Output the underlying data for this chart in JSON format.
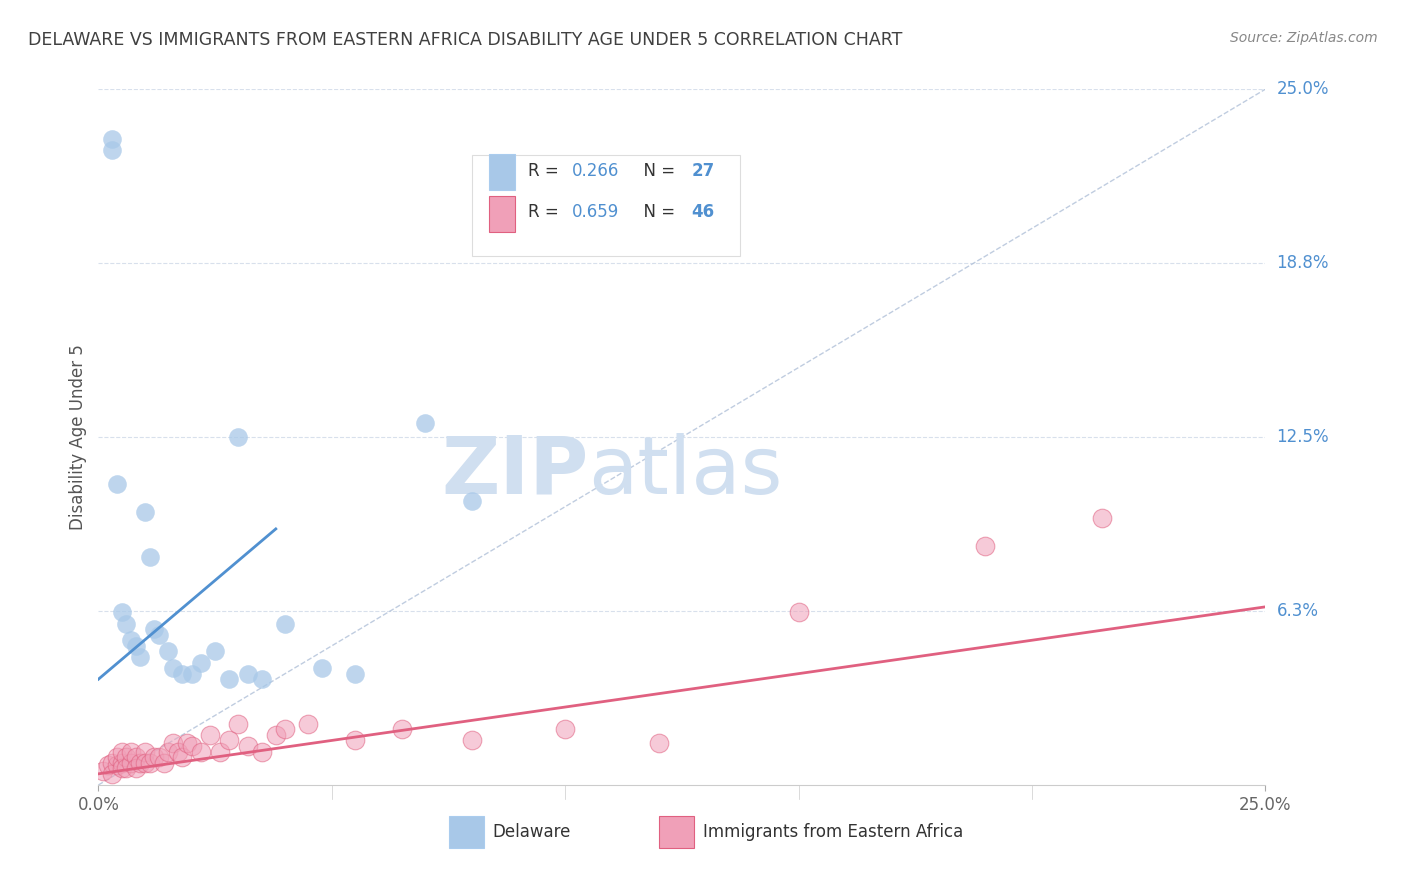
{
  "title": "DELAWARE VS IMMIGRANTS FROM EASTERN AFRICA DISABILITY AGE UNDER 5 CORRELATION CHART",
  "source": "Source: ZipAtlas.com",
  "ylabel": "Disability Age Under 5",
  "xmin": 0.0,
  "xmax": 0.25,
  "ymin": 0.0,
  "ymax": 0.25,
  "ytick_vals": [
    0.0,
    0.0625,
    0.125,
    0.1875,
    0.25
  ],
  "ytick_labels_right": [
    "",
    "6.3%",
    "12.5%",
    "18.8%",
    "25.0%"
  ],
  "xtick_vals": [
    0.0,
    0.25
  ],
  "xtick_labels": [
    "0.0%",
    "25.0%"
  ],
  "blue_R": "0.266",
  "blue_N": "27",
  "pink_R": "0.659",
  "pink_N": "46",
  "blue_scatter_color": "#a8c8e8",
  "blue_line_color": "#5090d0",
  "pink_scatter_color": "#f0a0b8",
  "pink_scatter_edge": "#e06080",
  "pink_line_color": "#e06080",
  "diagonal_color": "#b0c0d8",
  "grid_color": "#d8e0ec",
  "background_color": "#ffffff",
  "title_color": "#404040",
  "right_label_color": "#5090d0",
  "watermark_color": "#d0dff0",
  "blue_scatter_x": [
    0.003,
    0.003,
    0.004,
    0.005,
    0.006,
    0.007,
    0.008,
    0.009,
    0.01,
    0.011,
    0.012,
    0.013,
    0.015,
    0.016,
    0.018,
    0.02,
    0.022,
    0.025,
    0.028,
    0.03,
    0.032,
    0.035,
    0.04,
    0.048,
    0.055,
    0.07,
    0.08
  ],
  "blue_scatter_y": [
    0.232,
    0.228,
    0.108,
    0.062,
    0.058,
    0.052,
    0.05,
    0.046,
    0.098,
    0.082,
    0.056,
    0.054,
    0.048,
    0.042,
    0.04,
    0.04,
    0.044,
    0.048,
    0.038,
    0.125,
    0.04,
    0.038,
    0.058,
    0.042,
    0.04,
    0.13,
    0.102
  ],
  "pink_scatter_x": [
    0.001,
    0.002,
    0.003,
    0.003,
    0.004,
    0.004,
    0.005,
    0.005,
    0.005,
    0.006,
    0.006,
    0.007,
    0.007,
    0.008,
    0.008,
    0.009,
    0.01,
    0.01,
    0.011,
    0.012,
    0.013,
    0.014,
    0.015,
    0.016,
    0.017,
    0.018,
    0.019,
    0.02,
    0.022,
    0.024,
    0.026,
    0.028,
    0.03,
    0.032,
    0.035,
    0.038,
    0.04,
    0.045,
    0.055,
    0.065,
    0.08,
    0.1,
    0.12,
    0.15,
    0.19,
    0.215
  ],
  "pink_scatter_y": [
    0.005,
    0.007,
    0.008,
    0.004,
    0.007,
    0.01,
    0.008,
    0.012,
    0.006,
    0.01,
    0.006,
    0.008,
    0.012,
    0.01,
    0.006,
    0.008,
    0.012,
    0.008,
    0.008,
    0.01,
    0.01,
    0.008,
    0.012,
    0.015,
    0.012,
    0.01,
    0.015,
    0.014,
    0.012,
    0.018,
    0.012,
    0.016,
    0.022,
    0.014,
    0.012,
    0.018,
    0.02,
    0.022,
    0.016,
    0.02,
    0.016,
    0.02,
    0.015,
    0.062,
    0.086,
    0.096
  ],
  "blue_line_x": [
    0.0,
    0.038
  ],
  "blue_line_y": [
    0.038,
    0.092
  ],
  "pink_line_x": [
    0.0,
    0.25
  ],
  "pink_line_y": [
    0.004,
    0.064
  ]
}
